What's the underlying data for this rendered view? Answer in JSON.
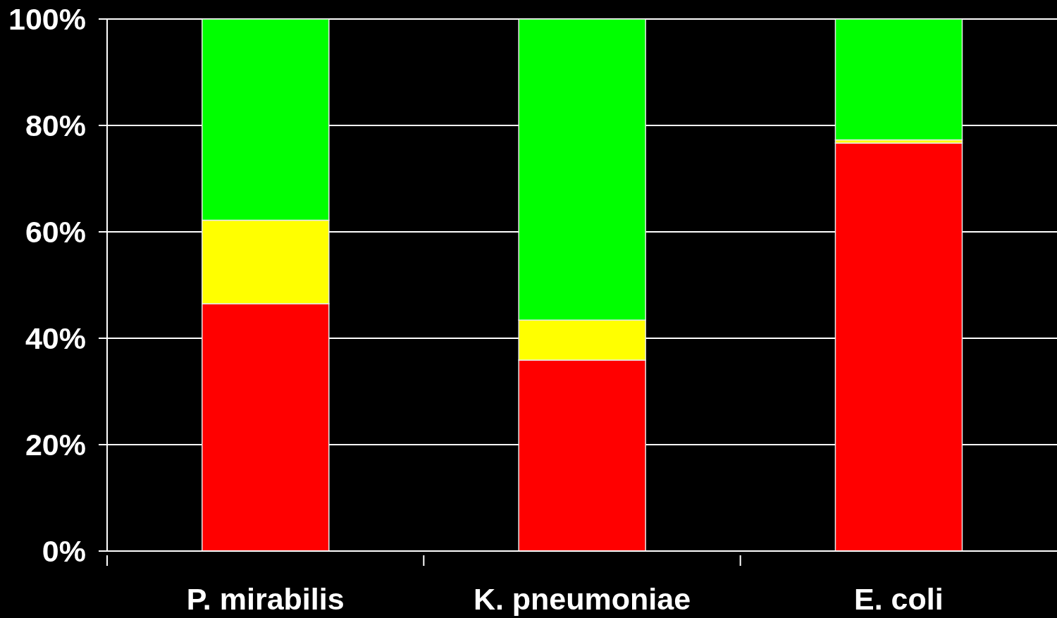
{
  "chart_data": {
    "type": "bar",
    "categories": [
      "P. mirabilis",
      "K. pneumoniae",
      "E. coli"
    ],
    "series": [
      {
        "color": "#ff0000",
        "values": [
          46.5,
          35.9,
          76.7
        ]
      },
      {
        "color": "#ffff00",
        "values": [
          15.7,
          7.5,
          0.6
        ]
      },
      {
        "color": "#00ff00",
        "values": [
          37.8,
          56.6,
          22.7
        ]
      }
    ],
    "stacked": true,
    "ylim": [
      0,
      100
    ],
    "yticks": [
      {
        "value": 0,
        "label": "0%"
      },
      {
        "value": 20,
        "label": "20%"
      },
      {
        "value": 40,
        "label": "40%"
      },
      {
        "value": 60,
        "label": "60%"
      },
      {
        "value": 80,
        "label": "80%"
      },
      {
        "value": 100,
        "label": "100%"
      }
    ],
    "grid": "y"
  }
}
